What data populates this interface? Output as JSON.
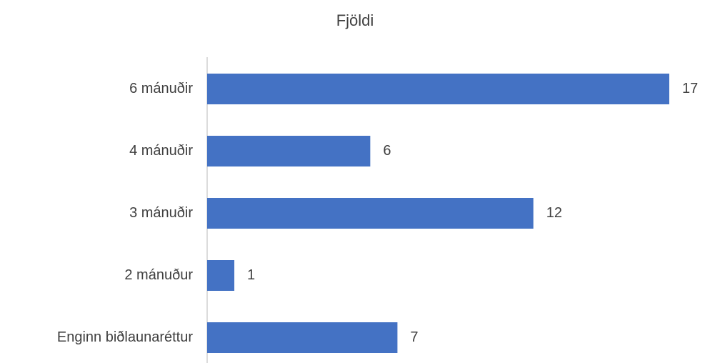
{
  "chart_data": {
    "type": "hbar",
    "title": "Fjöldi",
    "categories": [
      "6 mánuðir",
      "4 mánuðir",
      "3 mánuðir",
      "2 mánuður",
      "Enginn biðlaunaréttur"
    ],
    "values": [
      17,
      6,
      12,
      1,
      7
    ],
    "color": "#4472c4"
  }
}
